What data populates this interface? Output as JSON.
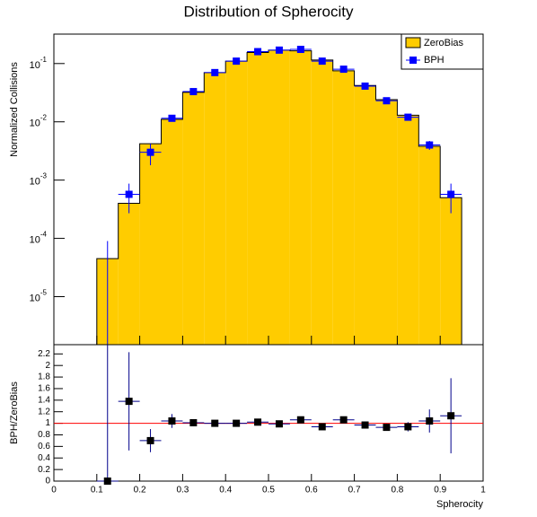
{
  "chart_data": [
    {
      "type": "histogram",
      "title": "Distribution of Spherocity",
      "y_label": "Normalized Collisions",
      "bins": [
        0.1,
        0.15,
        0.2,
        0.25,
        0.3,
        0.35,
        0.4,
        0.45,
        0.5,
        0.55,
        0.6,
        0.65,
        0.7,
        0.75,
        0.8,
        0.85,
        0.9,
        0.95
      ],
      "series": [
        {
          "name": "ZeroBias",
          "color": "#ffcc00",
          "values": [
            4.5e-05,
            0.0004,
            0.0042,
            0.011,
            0.032,
            0.07,
            0.11,
            0.155,
            0.17,
            0.165,
            0.115,
            0.075,
            0.042,
            0.024,
            0.013,
            0.0038,
            0.0005
          ]
        },
        {
          "name": "BPH",
          "color": "#0000ff",
          "values": [
            0,
            0.00057,
            0.003,
            0.0115,
            0.033,
            0.07,
            0.11,
            0.16,
            0.17,
            0.175,
            0.11,
            0.08,
            0.041,
            0.023,
            0.012,
            0.004,
            0.00057
          ],
          "errors": [
            9e-05,
            0.0003,
            0.0012,
            0.001,
            0.002,
            0.003,
            0.004,
            0.005,
            0.005,
            0.005,
            0.004,
            0.003,
            0.002,
            0.0015,
            0.001,
            0.0007,
            0.0003
          ]
        }
      ],
      "log_y": true,
      "xlim": [
        0,
        1
      ],
      "ylim": [
        1.5e-06,
        0.32
      ],
      "yticks": [
        {
          "value": 1e-05,
          "label": "10",
          "exponent": "-5"
        },
        {
          "value": 0.0001,
          "label": "10",
          "exponent": "-4"
        },
        {
          "value": 0.001,
          "label": "10",
          "exponent": "-3"
        },
        {
          "value": 0.01,
          "label": "10",
          "exponent": "-2"
        },
        {
          "value": 0.1,
          "label": "10",
          "exponent": "-1"
        }
      ],
      "legend": "top-right"
    },
    {
      "type": "ratio",
      "x_label": "Spherocity",
      "y_label": "BPH/ZeroBias",
      "x": [
        0.125,
        0.175,
        0.225,
        0.275,
        0.325,
        0.375,
        0.425,
        0.475,
        0.525,
        0.575,
        0.625,
        0.675,
        0.725,
        0.775,
        0.825,
        0.875,
        0.925
      ],
      "x_error": 0.025,
      "values": [
        0,
        1.38,
        0.7,
        1.04,
        1.01,
        1.0,
        1.0,
        1.02,
        0.99,
        1.06,
        0.94,
        1.06,
        0.97,
        0.93,
        0.94,
        1.04,
        1.13
      ],
      "errors": [
        2.5,
        0.85,
        0.2,
        0.12,
        0.06,
        0.04,
        0.04,
        0.03,
        0.03,
        0.03,
        0.04,
        0.04,
        0.05,
        0.06,
        0.08,
        0.2,
        0.65
      ],
      "color": "#000000",
      "reference_line": 1,
      "reference_color": "#ff0000",
      "xlim": [
        0,
        1
      ],
      "xticks": [
        0,
        0.1,
        0.2,
        0.3,
        0.4,
        0.5,
        0.6,
        0.7,
        0.8,
        0.9,
        1
      ],
      "ylim": [
        0,
        2.36
      ],
      "yticks": [
        0,
        0.2,
        0.4,
        0.6,
        0.8,
        1,
        1.2,
        1.4,
        1.6,
        1.8,
        2,
        2.2
      ]
    }
  ]
}
